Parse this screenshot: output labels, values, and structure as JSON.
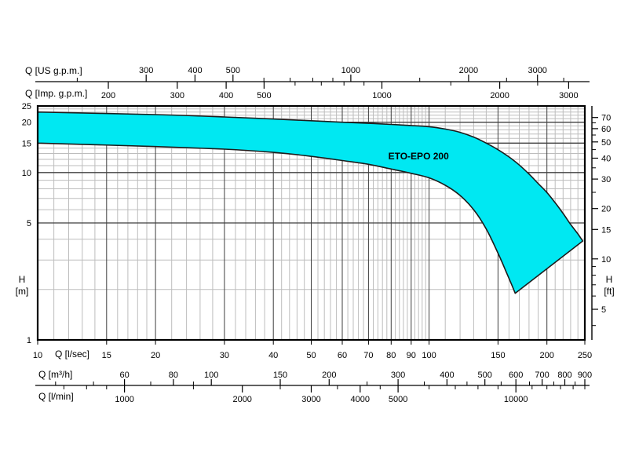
{
  "colors": {
    "background": "#ffffff",
    "envelope_fill": "#00e8f2",
    "envelope_stroke": "#1c1c1c",
    "series_label_color": "#ffff00",
    "grid_minor": "#bdbdbd",
    "grid_major": "#3f3f3f",
    "axis": "#000000"
  },
  "axes": {
    "us_gpm": {
      "label": "Q [US g.p.m.]",
      "major": [
        300,
        400,
        500,
        1000,
        2000,
        3000
      ],
      "minor": [
        200,
        600,
        700,
        800,
        900,
        1500,
        2500,
        3500
      ]
    },
    "imp_gpm": {
      "label": "Q [Imp. g.p.m.]",
      "major": [
        200,
        300,
        400,
        500,
        1000,
        2000,
        3000
      ],
      "minor": [
        600,
        700,
        800,
        900,
        1500,
        2500
      ]
    },
    "lsec": {
      "label": "Q [l/sec]",
      "major": [
        10,
        15,
        20,
        30,
        40,
        50,
        60,
        70,
        80,
        90,
        100,
        150,
        200,
        250
      ],
      "minor_grid": [
        11,
        12,
        13,
        14,
        16,
        17,
        18,
        19,
        22,
        24,
        26,
        28,
        32,
        34,
        36,
        38,
        42,
        44,
        46,
        48,
        52,
        54,
        56,
        58,
        62,
        64,
        66,
        68,
        72,
        74,
        76,
        78,
        82,
        84,
        86,
        88,
        92,
        94,
        96,
        98,
        110,
        120,
        130,
        140,
        160,
        170,
        180,
        190,
        210,
        220,
        230,
        240
      ]
    },
    "m3h": {
      "label": "Q [m³/h]",
      "major": [
        60,
        80,
        100,
        150,
        200,
        300,
        400,
        500,
        600,
        700,
        800,
        900
      ],
      "minor": [
        40,
        50,
        70,
        90,
        250,
        350,
        450,
        550,
        650,
        750,
        850
      ]
    },
    "lmin": {
      "label": "Q [l/min]",
      "major": [
        1000,
        2000,
        3000,
        4000,
        5000,
        10000
      ],
      "minor": [
        700,
        800,
        900,
        1500,
        2500,
        3500,
        4500,
        6000,
        7000,
        8000,
        9000,
        11000,
        12000,
        13000,
        14000,
        15000
      ]
    },
    "h_m": {
      "label_1": "H",
      "label_2": "[m]",
      "labels": [
        25,
        20,
        15,
        10,
        5,
        1
      ],
      "major_grid": [
        5,
        10,
        15,
        20
      ],
      "minor_grid": [
        2,
        3,
        4,
        6,
        7,
        8,
        9,
        11,
        12,
        13,
        14,
        16,
        17,
        18,
        19,
        21,
        22,
        23,
        24
      ]
    },
    "h_ft": {
      "label_1": "H",
      "label_2": "[ft]",
      "major": [
        70,
        60,
        50,
        40,
        30,
        20,
        15,
        10,
        5
      ],
      "minor": [
        65,
        55,
        45,
        35,
        25,
        9,
        8,
        7,
        6,
        4
      ]
    }
  },
  "chart_data": {
    "type": "area",
    "series_label": "ETO-EPO 200",
    "x_unit": "l/sec",
    "y_unit": "m",
    "x_scale": "log",
    "y_scale": "log",
    "x_range": [
      10,
      250
    ],
    "y_range": [
      1,
      25
    ],
    "unit_factors_per_lsec": {
      "us_gpm": 15.8503,
      "imp_gpm": 13.1981,
      "m3h": 3.6,
      "lmin": 60,
      "ft_per_m": 3.28084
    },
    "envelope_upper": [
      [
        10,
        23
      ],
      [
        20,
        22.2
      ],
      [
        30,
        21.5
      ],
      [
        40,
        20.9
      ],
      [
        50,
        20.4
      ],
      [
        60,
        20.0
      ],
      [
        70,
        19.7
      ],
      [
        80,
        19.4
      ],
      [
        90,
        19.1
      ],
      [
        100,
        18.8
      ],
      [
        110,
        18.2
      ],
      [
        120,
        17.4
      ],
      [
        130,
        16.3
      ],
      [
        140,
        15.0
      ],
      [
        150,
        13.7
      ],
      [
        160,
        12.4
      ],
      [
        170,
        11.1
      ],
      [
        180,
        9.8
      ],
      [
        190,
        8.6
      ],
      [
        200,
        7.6
      ],
      [
        210,
        6.6
      ],
      [
        220,
        5.7
      ],
      [
        230,
        4.9
      ],
      [
        240,
        4.3
      ],
      [
        247,
        3.9
      ]
    ],
    "envelope_lower": [
      [
        10,
        15
      ],
      [
        20,
        14.3
      ],
      [
        30,
        13.8
      ],
      [
        40,
        13.2
      ],
      [
        50,
        12.5
      ],
      [
        60,
        11.8
      ],
      [
        70,
        11.2
      ],
      [
        80,
        10.5
      ],
      [
        90,
        9.9
      ],
      [
        100,
        9.3
      ],
      [
        110,
        8.4
      ],
      [
        120,
        7.3
      ],
      [
        130,
        6.0
      ],
      [
        140,
        4.6
      ],
      [
        150,
        3.3
      ],
      [
        158,
        2.5
      ],
      [
        166,
        1.9
      ]
    ],
    "label_anchor": [
      94,
      12.5
    ]
  }
}
